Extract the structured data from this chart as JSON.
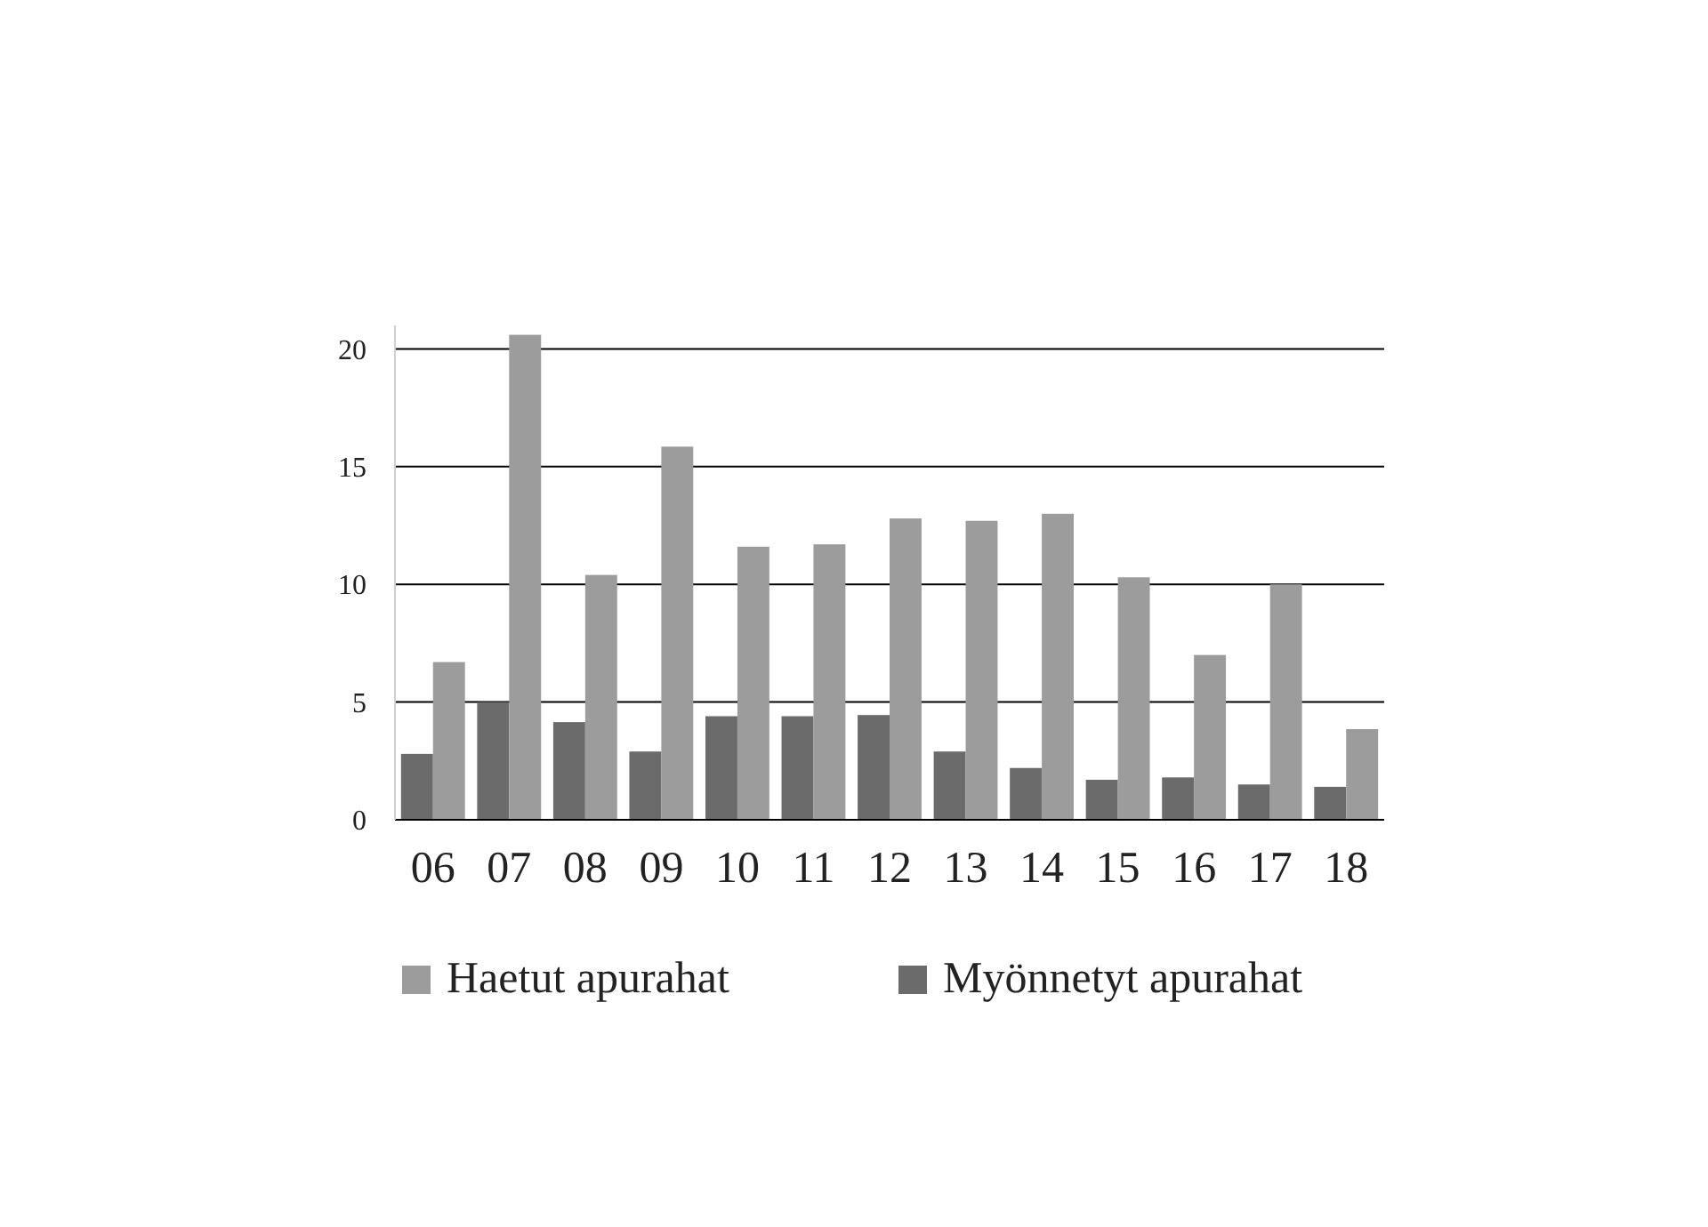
{
  "chart_data": {
    "type": "bar",
    "categories": [
      "06",
      "07",
      "08",
      "09",
      "10",
      "11",
      "12",
      "13",
      "14",
      "15",
      "16",
      "17",
      "18"
    ],
    "series": [
      {
        "name": "Myönnetyt apurahat",
        "color": "#6b6b6b",
        "values": [
          2.8,
          5,
          4.15,
          2.9,
          4.4,
          4.4,
          4.45,
          2.9,
          2.2,
          1.7,
          1.8,
          1.5,
          1.4
        ]
      },
      {
        "name": "Haetut apurahat",
        "color": "#9c9c9c",
        "values": [
          6.7,
          20.6,
          10.4,
          15.85,
          11.6,
          11.7,
          12.8,
          12.7,
          13,
          10.3,
          7,
          10,
          3.85
        ]
      }
    ],
    "ylim": [
      0,
      21
    ],
    "yticks": [
      0,
      5,
      10,
      15,
      20
    ],
    "grid": "y",
    "legend": "bottom"
  }
}
